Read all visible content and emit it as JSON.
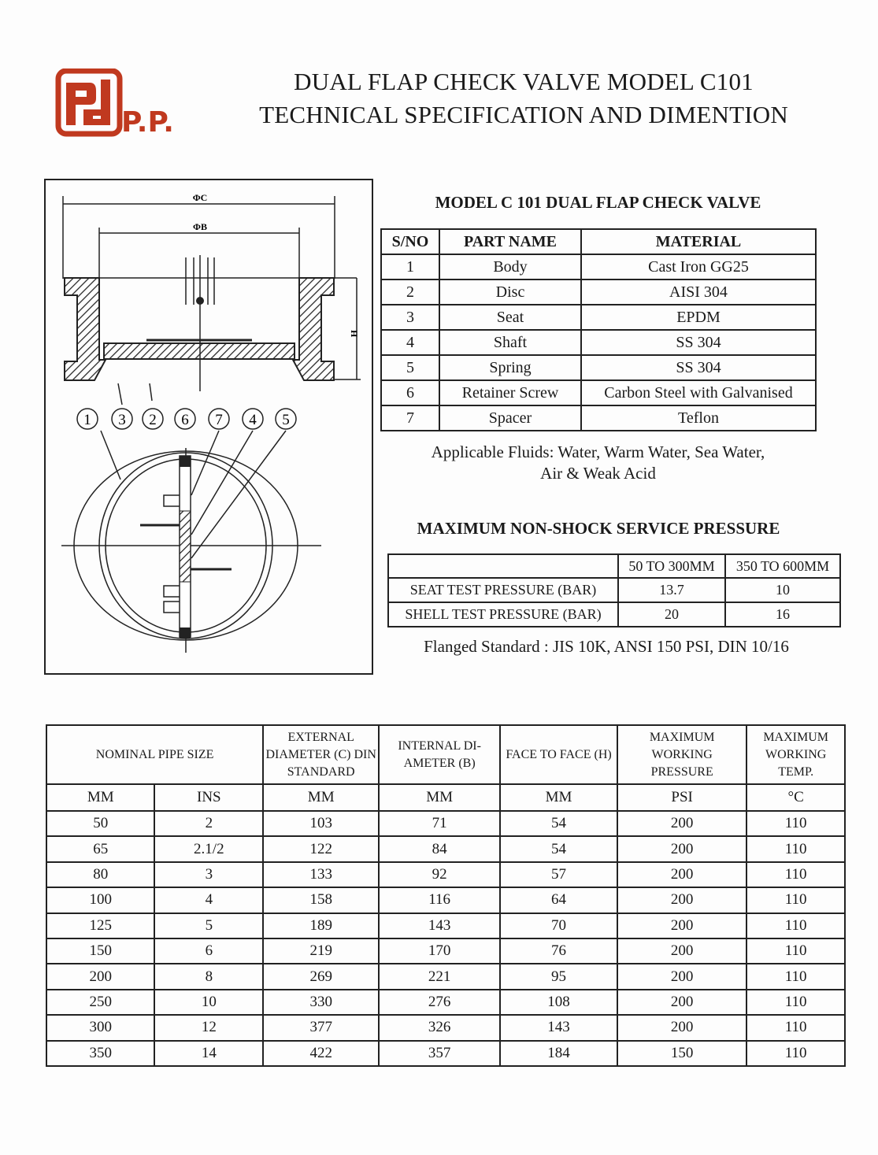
{
  "logo": {
    "text": "P.P.",
    "color": "#c0391f"
  },
  "header": {
    "title_line1": "DUAL FLAP CHECK VALVE MODEL C101",
    "title_line2": "TECHNICAL SPECIFICATION AND DIMENTION"
  },
  "diagram": {
    "dim_c": "ΦC",
    "dim_b": "ΦB",
    "dim_h": "H",
    "balloons": [
      "1",
      "3",
      "2",
      "6",
      "7",
      "4",
      "5"
    ]
  },
  "parts": {
    "heading": "MODEL C 101 DUAL FLAP CHECK VALVE",
    "columns": [
      "S/NO",
      "PART NAME",
      "MATERIAL"
    ],
    "rows": [
      [
        "1",
        "Body",
        "Cast Iron GG25"
      ],
      [
        "2",
        "Disc",
        "AISI 304"
      ],
      [
        "3",
        "Seat",
        "EPDM"
      ],
      [
        "4",
        "Shaft",
        "SS 304"
      ],
      [
        "5",
        "Spring",
        "SS 304"
      ],
      [
        "6",
        "Retainer Screw",
        "Carbon Steel with Galvanised"
      ],
      [
        "7",
        "Spacer",
        "Teflon"
      ]
    ],
    "fluids_line1": "Applicable Fluids: Water, Warm Water, Sea Water,",
    "fluids_line2": "Air & Weak Acid"
  },
  "pressure": {
    "heading": "MAXIMUM NON-SHOCK SERVICE PRESSURE",
    "columns": [
      "",
      "50 TO 300MM",
      "350 TO 600MM"
    ],
    "rows": [
      [
        "SEAT TEST PRESSURE (BAR)",
        "13.7",
        "10"
      ],
      [
        "SHELL TEST PRESSURE (BAR)",
        "20",
        "16"
      ]
    ],
    "flanged": "Flanged Standard : JIS 10K, ANSI 150 PSI, DIN 10/16"
  },
  "dimensions": {
    "headers": [
      "NOMINAL PIPE SIZE",
      "EXTERNAL DIAMETER (C) DIN STANDARD",
      "INTERNAL DI- AMETER (B)",
      "FACE TO FACE (H)",
      "MAXIMUM WORKING PRESSURE",
      "MAXIMUM WORKING TEMP."
    ],
    "units": [
      "MM",
      "INS",
      "MM",
      "MM",
      "MM",
      "PSI",
      "°C"
    ],
    "rows": [
      [
        "50",
        "2",
        "103",
        "71",
        "54",
        "200",
        "110"
      ],
      [
        "65",
        "2.1/2",
        "122",
        "84",
        "54",
        "200",
        "110"
      ],
      [
        "80",
        "3",
        "133",
        "92",
        "57",
        "200",
        "110"
      ],
      [
        "100",
        "4",
        "158",
        "116",
        "64",
        "200",
        "110"
      ],
      [
        "125",
        "5",
        "189",
        "143",
        "70",
        "200",
        "110"
      ],
      [
        "150",
        "6",
        "219",
        "170",
        "76",
        "200",
        "110"
      ],
      [
        "200",
        "8",
        "269",
        "221",
        "95",
        "200",
        "110"
      ],
      [
        "250",
        "10",
        "330",
        "276",
        "108",
        "200",
        "110"
      ],
      [
        "300",
        "12",
        "377",
        "326",
        "143",
        "200",
        "110"
      ],
      [
        "350",
        "14",
        "422",
        "357",
        "184",
        "150",
        "110"
      ]
    ]
  }
}
